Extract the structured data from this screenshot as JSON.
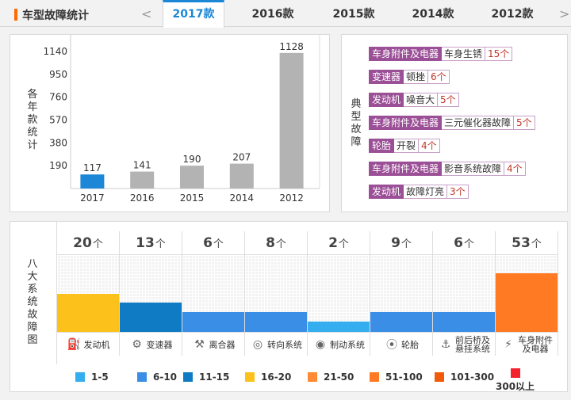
{
  "header": {
    "title": "车型故障统计",
    "prev": "<",
    "next": ">",
    "tabs": [
      "2017款",
      "2016款",
      "2015款",
      "2014款",
      "2012款"
    ],
    "active_tab": "2017款"
  },
  "chart_panel": {
    "ylabel_chars": [
      "各",
      "年",
      "款",
      "统",
      "计"
    ]
  },
  "chart_data": {
    "type": "bar",
    "categories": [
      "2017",
      "2016",
      "2015",
      "2014",
      "2012"
    ],
    "values": [
      117,
      141,
      190,
      207,
      1128
    ],
    "data_labels": [
      "117",
      "141",
      "190",
      "207",
      "1128"
    ],
    "colors": [
      "#1b87d6",
      "#b3b3b3",
      "#b3b3b3",
      "#b3b3b3",
      "#b3b3b3"
    ],
    "yticks": [
      "1140",
      "950",
      "760",
      "570",
      "380",
      "190"
    ],
    "ytick_values": [
      1140,
      950,
      760,
      570,
      380,
      190
    ],
    "ylim": [
      0,
      1140
    ],
    "ylabel": "各年款统计",
    "grid": false
  },
  "faults_panel": {
    "label_chars": [
      "典",
      "型",
      "故",
      "障"
    ],
    "items": [
      {
        "system": "车身附件及电器",
        "desc": "车身生锈",
        "count": "15个"
      },
      {
        "system": "变速器",
        "desc": "顿挫",
        "count": "6个"
      },
      {
        "system": "发动机",
        "desc": "噪音大",
        "count": "5个"
      },
      {
        "system": "车身附件及电器",
        "desc": "三元催化器故障",
        "count": "5个"
      },
      {
        "system": "轮胎",
        "desc": "开裂",
        "count": "4个"
      },
      {
        "system": "车身附件及电器",
        "desc": "影音系统故障",
        "count": "4个"
      },
      {
        "system": "发动机",
        "desc": "故障灯亮",
        "count": "3个"
      }
    ]
  },
  "systems_panel": {
    "label_chars": [
      "八",
      "大",
      "系",
      "统",
      "故",
      "障",
      "图"
    ],
    "unit": "个",
    "systems": [
      {
        "count": "20",
        "name": "发动机",
        "icon": "engine-icon",
        "glyph": "⛽",
        "color": "#fcc21b",
        "level": 0.5
      },
      {
        "count": "13",
        "name": "变速器",
        "icon": "gearshift-icon",
        "glyph": "⚙",
        "color": "#0f7bc4",
        "level": 0.38
      },
      {
        "count": "6",
        "name": "离合器",
        "icon": "clutch-icon",
        "glyph": "⚒",
        "color": "#3a8ee6",
        "level": 0.26
      },
      {
        "count": "8",
        "name": "转向系统",
        "icon": "steering-wheel-icon",
        "glyph": "◎",
        "color": "#3a8ee6",
        "level": 0.26
      },
      {
        "count": "2",
        "name": "制动系统",
        "icon": "brake-icon",
        "glyph": "◉",
        "color": "#35aef0",
        "level": 0.13
      },
      {
        "count": "9",
        "name": "轮胎",
        "icon": "tire-icon",
        "glyph": "⦿",
        "color": "#3a8ee6",
        "level": 0.26
      },
      {
        "count": "6",
        "name": "前后桥及悬挂系统",
        "name_lines": [
          "前后桥及",
          "悬挂系统"
        ],
        "icon": "suspension-icon",
        "glyph": "⚓",
        "color": "#3a8ee6",
        "level": 0.26
      },
      {
        "count": "53",
        "name": "车身附件及电器",
        "name_lines": [
          "车身附件",
          "及电器"
        ],
        "icon": "body-electric-icon",
        "glyph": "⚡",
        "color": "#ff7a22",
        "level": 0.76
      }
    ],
    "legend": [
      {
        "label": "1-5",
        "color": "#35aef0"
      },
      {
        "label": "6-10",
        "color": "#3a8ee6"
      },
      {
        "label": "11-15",
        "color": "#0f7bc4"
      },
      {
        "label": "16-20",
        "color": "#fcc21b"
      },
      {
        "label": "21-50",
        "color": "#ff8a33"
      },
      {
        "label": "51-100",
        "color": "#ff7a22"
      },
      {
        "label": "101-300",
        "color": "#f25a0a"
      },
      {
        "label": "300以上",
        "color": "#f5222d"
      }
    ]
  }
}
